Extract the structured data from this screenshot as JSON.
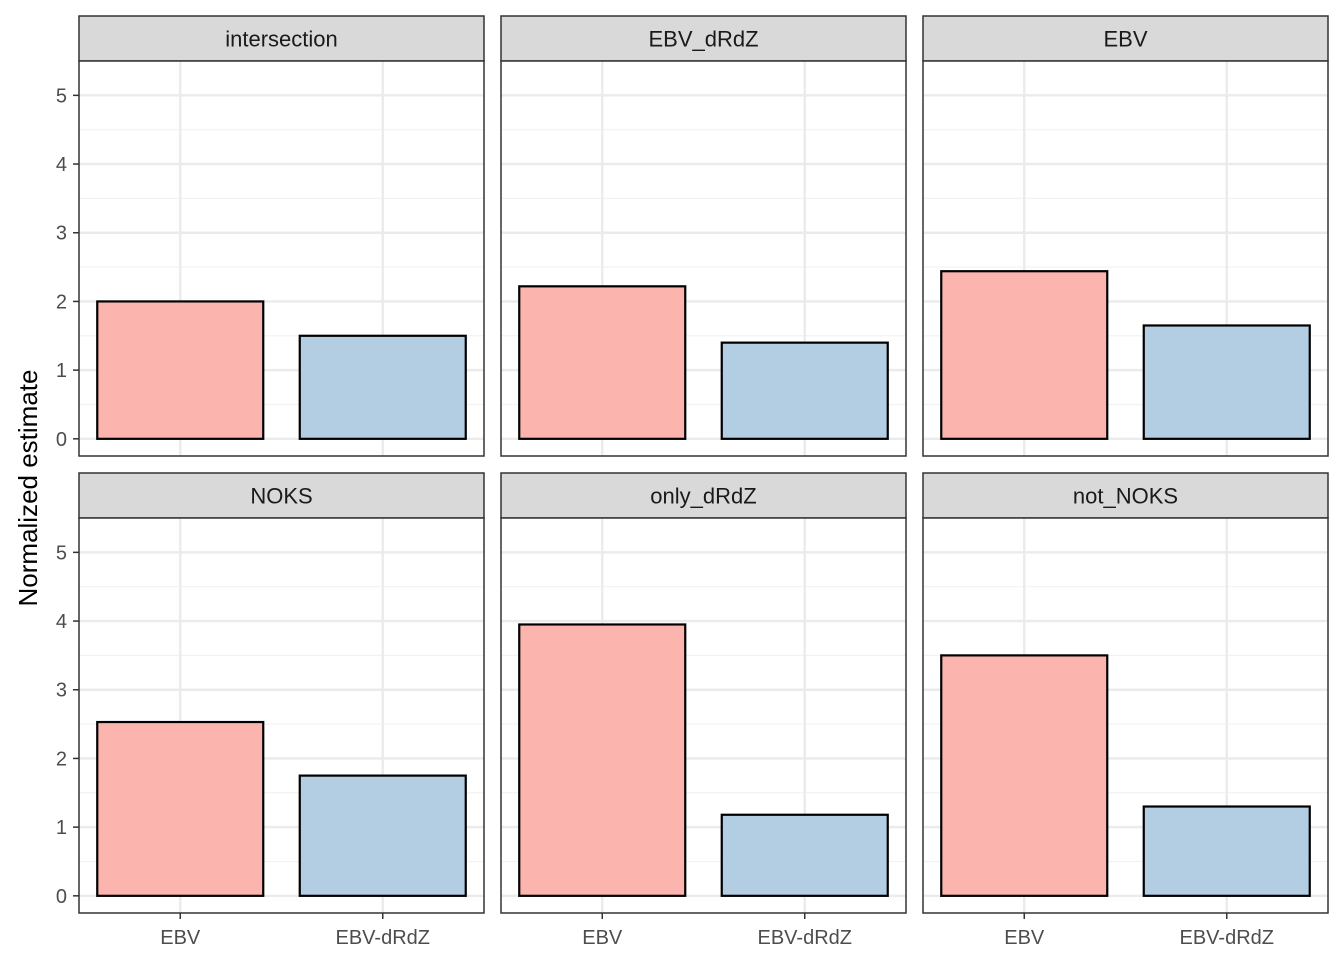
{
  "chart_data": {
    "type": "bar",
    "facet_layout": "2x3",
    "categories": [
      "EBV",
      "EBV-dRdZ"
    ],
    "ylabel": "Normalized estimate",
    "xlabel": "",
    "ylim": [
      -0.25,
      5.5
    ],
    "yticks": [
      0,
      1,
      2,
      3,
      4,
      5
    ],
    "grid": true,
    "colors": {
      "EBV": "#FBB4AE",
      "EBV-dRdZ": "#B3CDE3",
      "bar_outline": "#000000",
      "strip_fill": "#D9D9D9",
      "grid": "#EBEBEB"
    },
    "panels": [
      {
        "title": "intersection",
        "values": [
          2.0,
          1.5
        ]
      },
      {
        "title": "EBV_dRdZ",
        "values": [
          2.22,
          1.4
        ]
      },
      {
        "title": "EBV",
        "values": [
          2.44,
          1.65
        ]
      },
      {
        "title": "NOKS",
        "values": [
          2.53,
          1.75
        ]
      },
      {
        "title": "only_dRdZ",
        "values": [
          3.95,
          1.18
        ]
      },
      {
        "title": "not_NOKS",
        "values": [
          3.5,
          1.3
        ]
      }
    ]
  }
}
